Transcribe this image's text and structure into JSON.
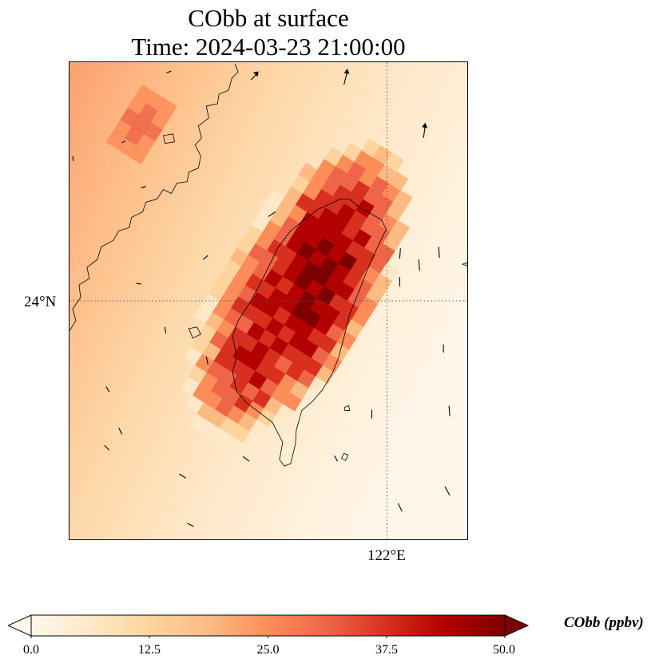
{
  "title_line1": "CObb at surface",
  "title_line2": "Time: 2024-03-23 21:00:00",
  "map": {
    "variable": "CObb",
    "level": "surface",
    "gridlines": {
      "style": "dotted",
      "color": "#555555"
    },
    "lat_gridline": {
      "value": 24,
      "label": "24°N"
    },
    "lon_gridline": {
      "value": 122,
      "label": "122°E"
    },
    "coastline_color": "#000000",
    "wind_vectors": "shown"
  },
  "colorbar": {
    "label": "CObb (ppbv)",
    "colormap": "OrRd",
    "range": [
      0.0,
      50.0
    ],
    "extend": "both",
    "ticks": [
      "0.0",
      "12.5",
      "25.0",
      "37.5",
      "50.0"
    ],
    "colors": [
      "#fff7ec",
      "#fee8c8",
      "#fdd49e",
      "#fdbb84",
      "#fc8d59",
      "#ef6548",
      "#d7301f",
      "#b30000",
      "#7f0000"
    ]
  }
}
